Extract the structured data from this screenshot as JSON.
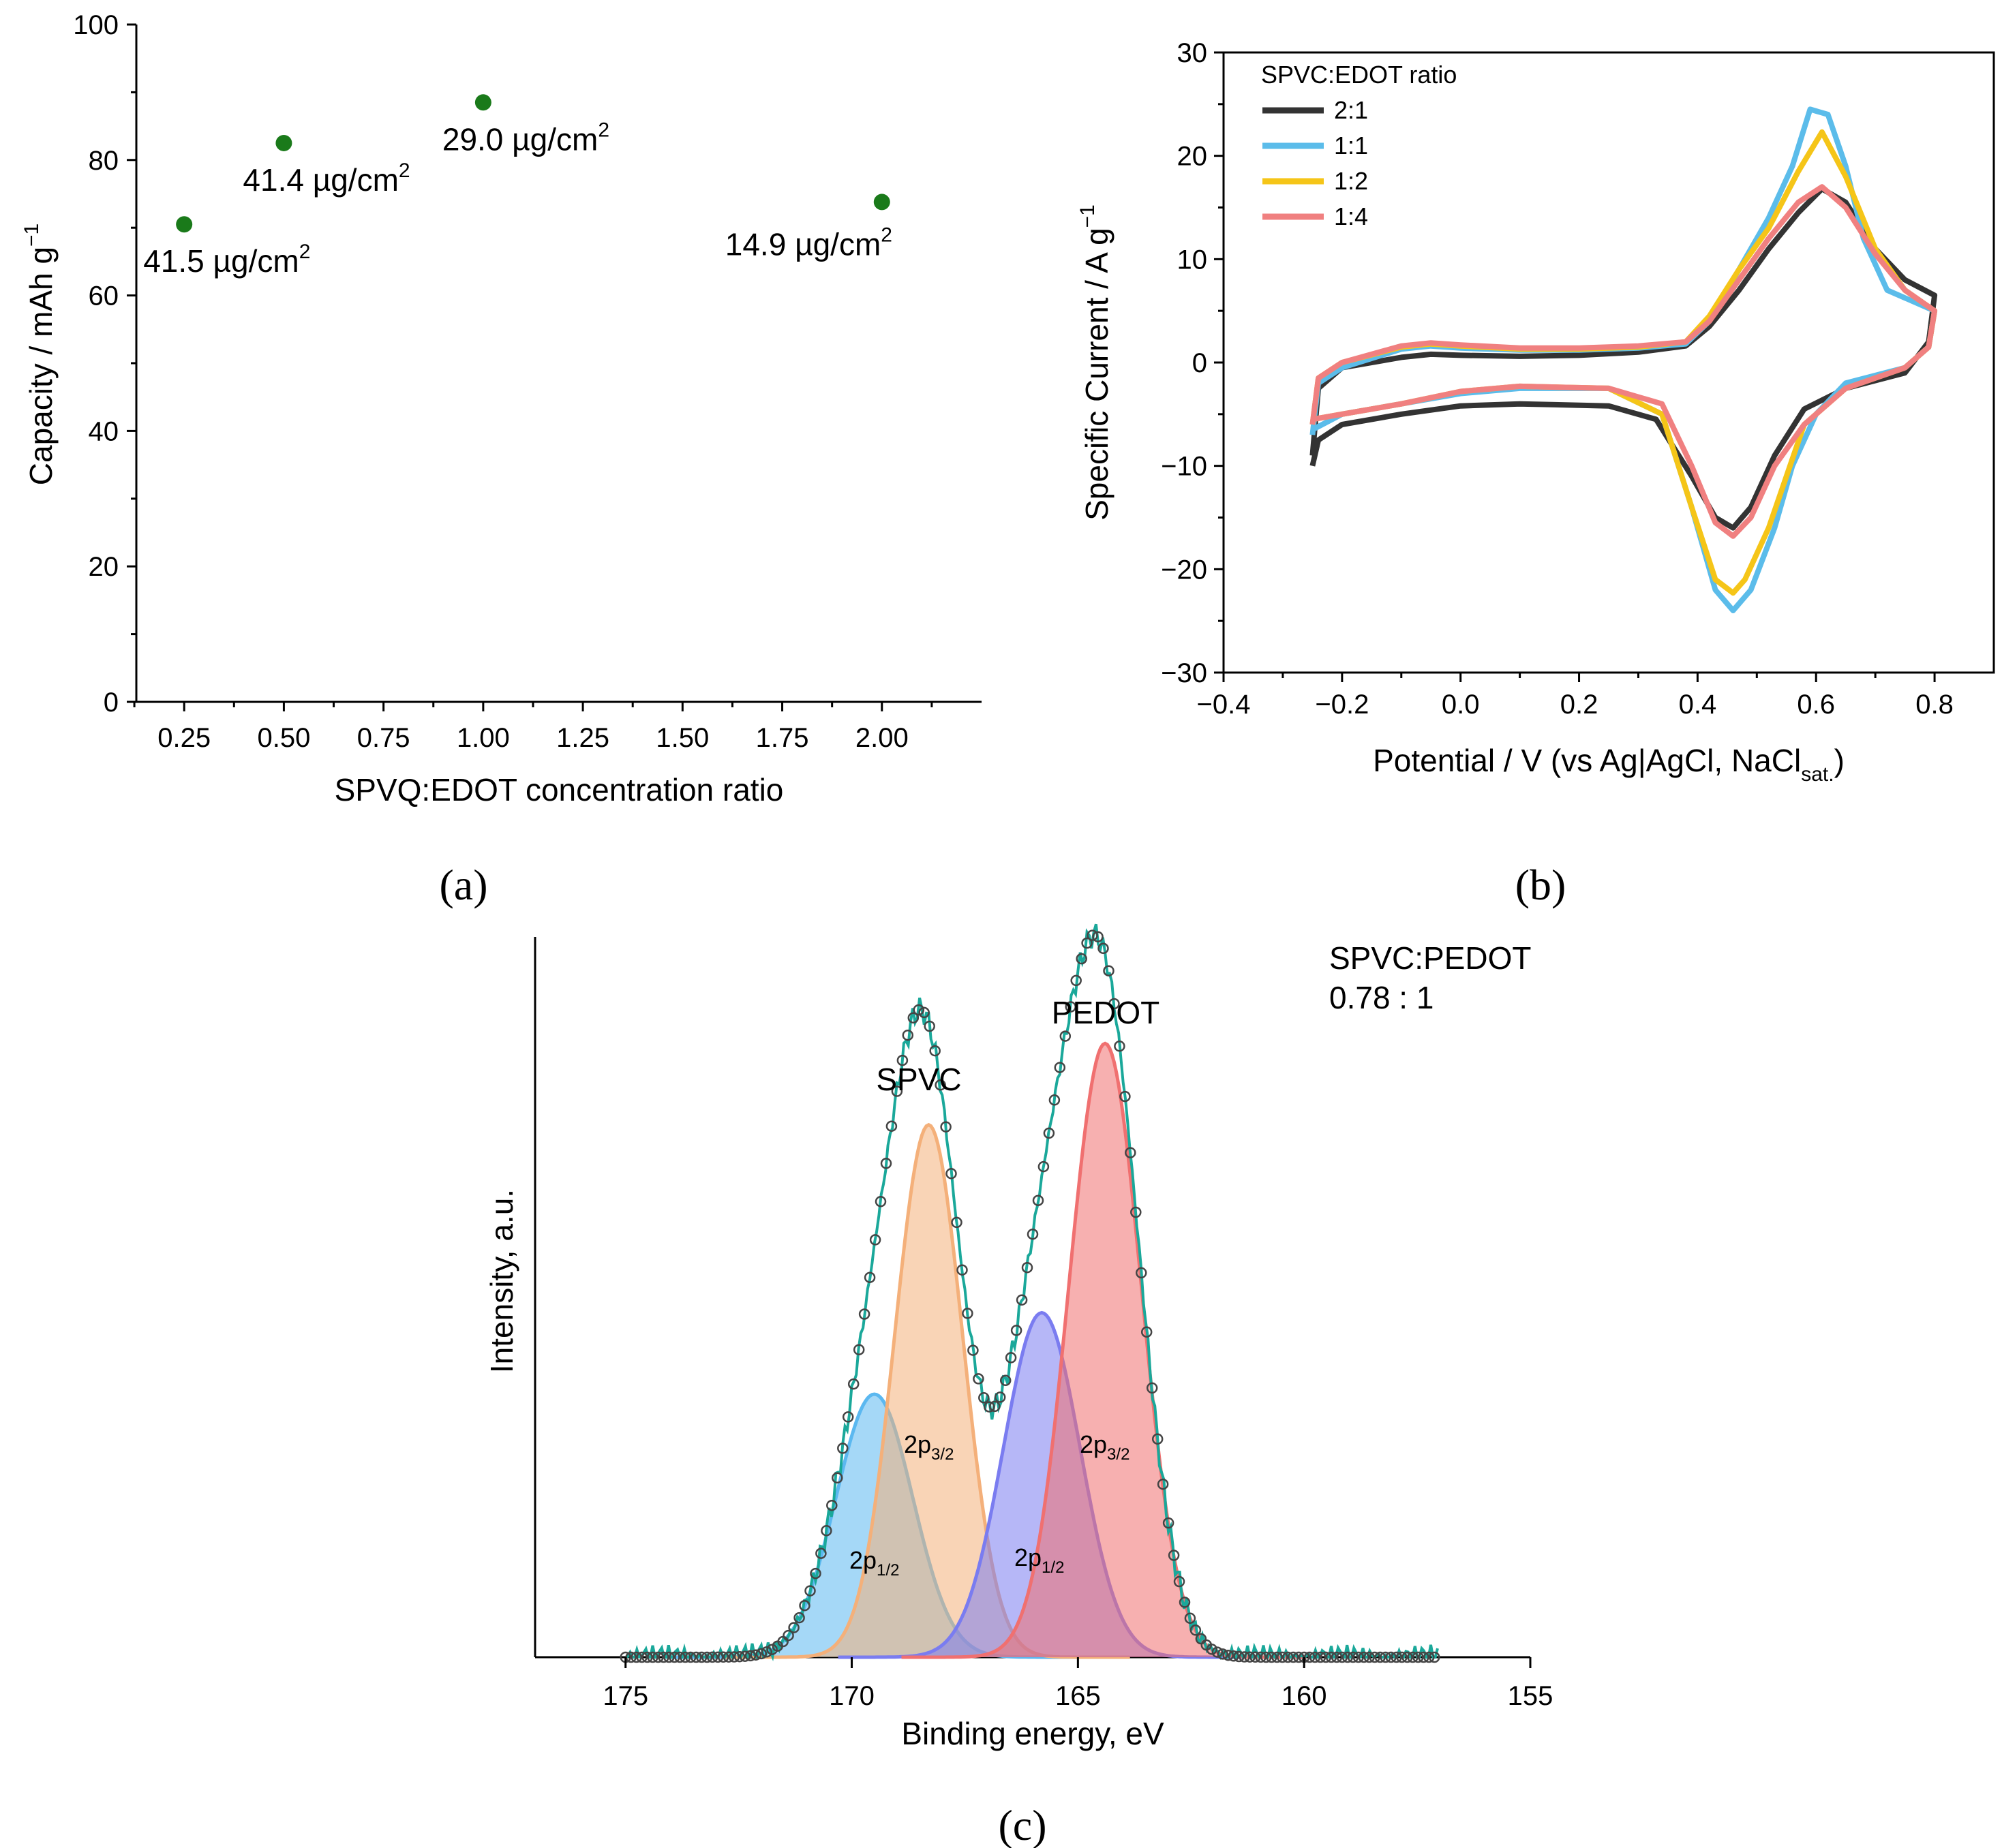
{
  "chart_data": [
    {
      "panel": "(a)",
      "type": "scatter",
      "title": "",
      "xlabel": "SPVQ:EDOT concentration ratio",
      "ylabel": "Capacity / mAh g",
      "ylabel_sup": "−1",
      "xlim": [
        0.13,
        2.25
      ],
      "ylim": [
        0,
        100
      ],
      "xticks": [
        0.25,
        0.5,
        0.75,
        1.0,
        1.25,
        1.5,
        1.75,
        2.0
      ],
      "xtick_labels": [
        "0.25",
        "0.50",
        "0.75",
        "1.00",
        "1.25",
        "1.50",
        "1.75",
        "2.00"
      ],
      "yticks": [
        0,
        20,
        40,
        60,
        80,
        100
      ],
      "ytick_labels": [
        "0",
        "20",
        "40",
        "60",
        "80",
        "100"
      ],
      "marker_color": "#1a7a1a",
      "points": [
        {
          "x": 0.25,
          "y": 70.5,
          "label": "41.5 µg/cm",
          "label_sup": "2"
        },
        {
          "x": 0.5,
          "y": 82.5,
          "label": "41.4 µg/cm",
          "label_sup": "2"
        },
        {
          "x": 1.0,
          "y": 88.5,
          "label": "29.0 µg/cm",
          "label_sup": "2"
        },
        {
          "x": 2.0,
          "y": 73.8,
          "label": "14.9 µg/cm",
          "label_sup": "2"
        }
      ]
    },
    {
      "panel": "(b)",
      "type": "line",
      "title": "",
      "xlabel": "Potential / V (vs Ag|AgCl, NaCl",
      "xlabel_sub": "sat.",
      "xlabel_end": ")",
      "ylabel": "Specific Current / A g",
      "ylabel_sup": "−1",
      "xlim": [
        -0.4,
        0.9
      ],
      "ylim": [
        -30,
        30
      ],
      "xticks": [
        -0.4,
        -0.2,
        0.0,
        0.2,
        0.4,
        0.6,
        0.8
      ],
      "xtick_labels": [
        "−0.4",
        "−0.2",
        "0.0",
        "0.2",
        "0.4",
        "0.6",
        "0.8"
      ],
      "yticks": [
        -30,
        -20,
        -10,
        0,
        10,
        20,
        30
      ],
      "ytick_labels": [
        "−30",
        "−20",
        "−10",
        "0",
        "10",
        "20",
        "30"
      ],
      "legend_title": "SPVC:EDOT ratio",
      "legend_position": "top-left",
      "series": [
        {
          "name": "2:1",
          "color": "#333333",
          "anodic": [
            [
              -0.25,
              -9
            ],
            [
              -0.24,
              -2.5
            ],
            [
              -0.2,
              -0.5
            ],
            [
              -0.1,
              0.5
            ],
            [
              -0.05,
              0.8
            ],
            [
              0.0,
              0.7
            ],
            [
              0.1,
              0.6
            ],
            [
              0.2,
              0.7
            ],
            [
              0.3,
              1.0
            ],
            [
              0.38,
              1.6
            ],
            [
              0.42,
              3.5
            ],
            [
              0.47,
              7
            ],
            [
              0.52,
              11
            ],
            [
              0.57,
              14.5
            ],
            [
              0.61,
              16.8
            ],
            [
              0.65,
              15.5
            ],
            [
              0.7,
              11
            ],
            [
              0.75,
              8
            ],
            [
              0.8,
              6.5
            ]
          ],
          "cathodic": [
            [
              0.8,
              6.5
            ],
            [
              0.79,
              2
            ],
            [
              0.75,
              -1
            ],
            [
              0.65,
              -2.5
            ],
            [
              0.58,
              -4.5
            ],
            [
              0.53,
              -9
            ],
            [
              0.49,
              -14
            ],
            [
              0.46,
              -16
            ],
            [
              0.43,
              -15
            ],
            [
              0.39,
              -11
            ],
            [
              0.33,
              -5.5
            ],
            [
              0.25,
              -4.2
            ],
            [
              0.1,
              -4
            ],
            [
              0.0,
              -4.2
            ],
            [
              -0.1,
              -5
            ],
            [
              -0.2,
              -6
            ],
            [
              -0.24,
              -7.5
            ],
            [
              -0.25,
              -10
            ]
          ]
        },
        {
          "name": "1:1",
          "color": "#5bbcea",
          "anodic": [
            [
              -0.25,
              -7
            ],
            [
              -0.24,
              -2
            ],
            [
              -0.2,
              -0.5
            ],
            [
              -0.1,
              1.3
            ],
            [
              -0.05,
              1.6
            ],
            [
              0.0,
              1.4
            ],
            [
              0.1,
              1.2
            ],
            [
              0.2,
              1.2
            ],
            [
              0.3,
              1.4
            ],
            [
              0.38,
              1.8
            ],
            [
              0.42,
              4
            ],
            [
              0.47,
              9
            ],
            [
              0.52,
              14
            ],
            [
              0.56,
              19
            ],
            [
              0.59,
              24.5
            ],
            [
              0.62,
              24
            ],
            [
              0.65,
              19
            ],
            [
              0.68,
              12
            ],
            [
              0.72,
              7
            ],
            [
              0.8,
              5
            ]
          ],
          "cathodic": [
            [
              0.8,
              5
            ],
            [
              0.79,
              1.5
            ],
            [
              0.75,
              -0.5
            ],
            [
              0.65,
              -2
            ],
            [
              0.6,
              -5
            ],
            [
              0.56,
              -10
            ],
            [
              0.53,
              -16
            ],
            [
              0.49,
              -22
            ],
            [
              0.46,
              -24
            ],
            [
              0.43,
              -22
            ],
            [
              0.39,
              -14
            ],
            [
              0.34,
              -5
            ],
            [
              0.25,
              -2.5
            ],
            [
              0.1,
              -2.5
            ],
            [
              0.0,
              -3
            ],
            [
              -0.1,
              -4
            ],
            [
              -0.2,
              -5
            ],
            [
              -0.25,
              -6.5
            ]
          ]
        },
        {
          "name": "1:2",
          "color": "#f5c518",
          "anodic": [
            [
              -0.25,
              -6
            ],
            [
              -0.24,
              -1.5
            ],
            [
              -0.2,
              0
            ],
            [
              -0.1,
              1.5
            ],
            [
              -0.05,
              1.8
            ],
            [
              0.0,
              1.6
            ],
            [
              0.1,
              1.3
            ],
            [
              0.2,
              1.3
            ],
            [
              0.3,
              1.5
            ],
            [
              0.38,
              2
            ],
            [
              0.42,
              4.5
            ],
            [
              0.47,
              9
            ],
            [
              0.52,
              13
            ],
            [
              0.57,
              18.5
            ],
            [
              0.61,
              22.3
            ],
            [
              0.65,
              18
            ],
            [
              0.7,
              11
            ],
            [
              0.75,
              7
            ],
            [
              0.8,
              5
            ]
          ],
          "cathodic": [
            [
              0.8,
              5
            ],
            [
              0.79,
              1.5
            ],
            [
              0.75,
              -0.5
            ],
            [
              0.65,
              -2.5
            ],
            [
              0.58,
              -6
            ],
            [
              0.55,
              -11
            ],
            [
              0.52,
              -16
            ],
            [
              0.48,
              -21
            ],
            [
              0.46,
              -22.3
            ],
            [
              0.43,
              -21
            ],
            [
              0.39,
              -14
            ],
            [
              0.34,
              -5
            ],
            [
              0.25,
              -2.5
            ],
            [
              0.1,
              -2.3
            ],
            [
              0.0,
              -2.8
            ],
            [
              -0.1,
              -4
            ],
            [
              -0.2,
              -5
            ],
            [
              -0.25,
              -5.5
            ]
          ]
        },
        {
          "name": "1:4",
          "color": "#f08080",
          "anodic": [
            [
              -0.25,
              -6
            ],
            [
              -0.24,
              -1.5
            ],
            [
              -0.2,
              0
            ],
            [
              -0.1,
              1.6
            ],
            [
              -0.05,
              1.9
            ],
            [
              0.0,
              1.7
            ],
            [
              0.1,
              1.4
            ],
            [
              0.2,
              1.4
            ],
            [
              0.3,
              1.6
            ],
            [
              0.38,
              2
            ],
            [
              0.42,
              4
            ],
            [
              0.47,
              8
            ],
            [
              0.52,
              12
            ],
            [
              0.57,
              15.5
            ],
            [
              0.61,
              17
            ],
            [
              0.65,
              15
            ],
            [
              0.7,
              10.5
            ],
            [
              0.75,
              7
            ],
            [
              0.8,
              5
            ]
          ],
          "cathodic": [
            [
              0.8,
              5
            ],
            [
              0.79,
              1.5
            ],
            [
              0.75,
              -0.5
            ],
            [
              0.65,
              -2.5
            ],
            [
              0.58,
              -6
            ],
            [
              0.53,
              -10
            ],
            [
              0.49,
              -15
            ],
            [
              0.46,
              -16.8
            ],
            [
              0.43,
              -15.5
            ],
            [
              0.39,
              -10
            ],
            [
              0.34,
              -4
            ],
            [
              0.25,
              -2.5
            ],
            [
              0.1,
              -2.3
            ],
            [
              0.0,
              -2.8
            ],
            [
              -0.1,
              -4
            ],
            [
              -0.2,
              -5
            ],
            [
              -0.25,
              -5.5
            ]
          ]
        }
      ]
    },
    {
      "panel": "(c)",
      "type": "area",
      "title": "",
      "xlabel": "Binding energy, eV",
      "ylabel": "Intensity, a.u.",
      "xlim": [
        177,
        155
      ],
      "ylim": [
        0,
        1.15
      ],
      "x_reversed": true,
      "xticks": [
        175,
        170,
        165,
        160,
        155
      ],
      "xtick_labels": [
        "175",
        "170",
        "165",
        "160",
        "155"
      ],
      "annotations": {
        "spvc_group": "SPVC",
        "pedot_group": "PEDOT",
        "ratio_title": "SPVC:PEDOT",
        "ratio_value": "0.78 : 1",
        "orbital_label": "2p",
        "sub_half": "1/2",
        "sub_three_half": "3/2"
      },
      "peaks": [
        {
          "name": "SPVC 2p1/2",
          "center": 169.5,
          "height": 0.42,
          "sigma": 0.85,
          "color": "#5bb8f0"
        },
        {
          "name": "SPVC 2p3/2",
          "center": 168.3,
          "height": 0.85,
          "sigma": 0.75,
          "color": "#f4b07a"
        },
        {
          "name": "PEDOT 2p1/2",
          "center": 165.8,
          "height": 0.55,
          "sigma": 0.85,
          "color": "#7a7cf0"
        },
        {
          "name": "PEDOT 2p3/2",
          "center": 164.4,
          "height": 0.98,
          "sigma": 0.8,
          "color": "#f07070"
        }
      ],
      "data_range": [
        175,
        157
      ],
      "envelope_color": "#1aa89a",
      "points_color": "#444444"
    }
  ],
  "panel_labels": {
    "a": "(a)",
    "b": "(b)",
    "c": "(c)"
  }
}
